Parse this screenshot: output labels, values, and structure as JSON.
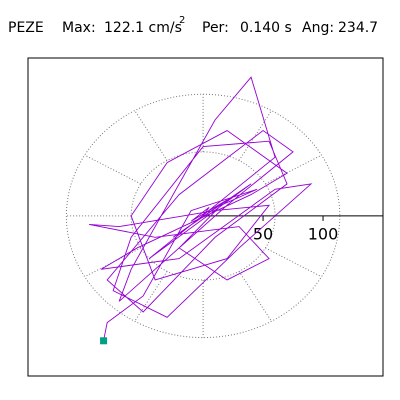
{
  "chart_data": {
    "type": "hodogram",
    "station": "PEZE",
    "max_label": "Max:",
    "max_value": "122.1 cm/s",
    "max_exponent": "2",
    "period_label": "Per:",
    "period_value": "0.140 s",
    "angle_label": "Ang:",
    "angle_value": "234.7",
    "xlim": [
      -146,
      150
    ],
    "ylim": [
      -150,
      148
    ],
    "xticks": [
      50,
      100
    ],
    "color": "#9400d3",
    "end_color": "#00a088",
    "x": [
      0,
      5,
      -10,
      20,
      -25,
      40,
      -45,
      60,
      40,
      10,
      -60,
      -70,
      20,
      75,
      50,
      -20,
      -80,
      -50,
      10,
      70,
      55,
      0,
      -60,
      -75,
      -30,
      30,
      90,
      60,
      -20,
      -85,
      -55,
      40,
      70,
      20,
      -30,
      -60,
      -40,
      20,
      55,
      10,
      -70,
      -95,
      -40,
      30,
      55,
      20,
      -20,
      15,
      45,
      -10,
      -50,
      -80,
      -83
    ],
    "y": [
      0,
      8,
      -5,
      15,
      -20,
      30,
      -40,
      55,
      130,
      90,
      -50,
      -80,
      10,
      60,
      80,
      20,
      -60,
      -90,
      -20,
      30,
      70,
      65,
      -20,
      -70,
      -95,
      -30,
      30,
      25,
      -40,
      -50,
      -30,
      20,
      40,
      80,
      50,
      0,
      -60,
      -40,
      10,
      5,
      -10,
      -8,
      -20,
      -10,
      -40,
      -60,
      -30,
      10,
      25,
      5,
      -75,
      -100,
      -117
    ]
  }
}
